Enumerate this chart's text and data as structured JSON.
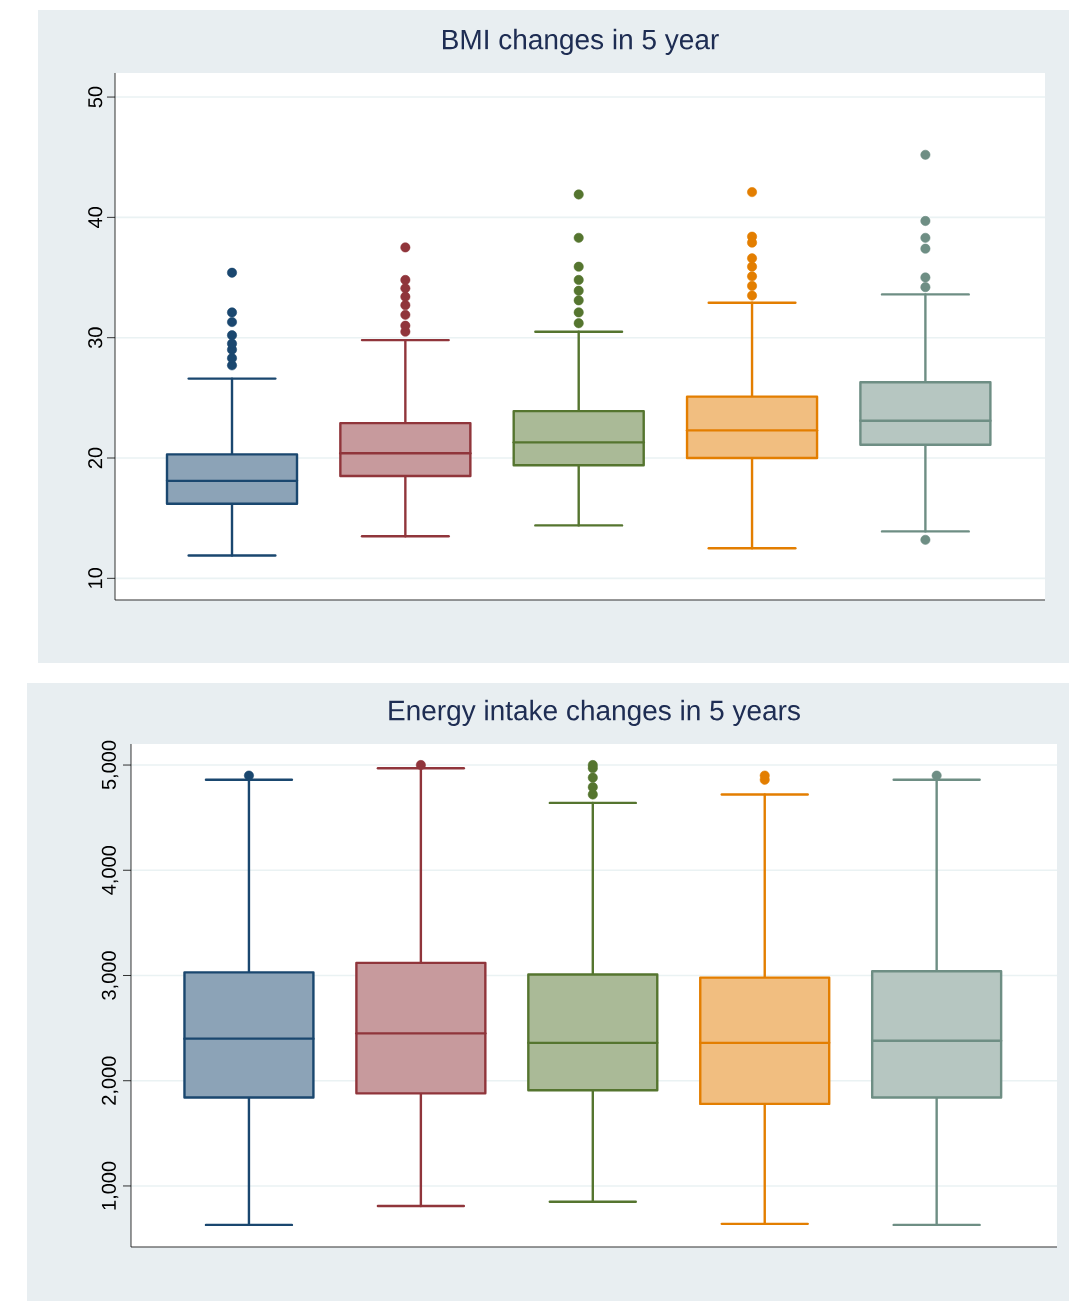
{
  "chart_data": [
    {
      "type": "box",
      "title": "BMI changes in 5 year",
      "categories": [
        null,
        null,
        null,
        null,
        null
      ],
      "colors": [
        "#1a476f",
        "#90353b",
        "#55752f",
        "#e37e00",
        "#6e8e84"
      ],
      "boxes": [
        {
          "low": 11.9,
          "q1": 16.2,
          "median": 18.1,
          "q3": 20.3,
          "high": 26.6,
          "outliers": [
            27.7,
            28.3,
            29.0,
            29.5,
            30.2,
            31.3,
            32.1,
            35.4
          ]
        },
        {
          "low": 13.5,
          "q1": 18.5,
          "median": 20.4,
          "q3": 22.9,
          "high": 29.8,
          "outliers": [
            30.5,
            31.0,
            31.9,
            32.7,
            33.4,
            34.1,
            34.8,
            37.5
          ]
        },
        {
          "low": 14.4,
          "q1": 19.4,
          "median": 21.3,
          "q3": 23.9,
          "high": 30.5,
          "outliers": [
            31.2,
            32.1,
            33.1,
            33.9,
            34.8,
            35.9,
            38.3,
            41.9
          ]
        },
        {
          "low": 12.5,
          "q1": 20.0,
          "median": 22.3,
          "q3": 25.1,
          "high": 32.9,
          "outliers": [
            33.5,
            34.3,
            35.1,
            35.9,
            36.6,
            37.9,
            38.4,
            42.1
          ]
        },
        {
          "low": 13.9,
          "q1": 21.1,
          "median": 23.1,
          "q3": 26.3,
          "high": 33.6,
          "outliers": [
            13.2,
            34.2,
            35.0,
            37.4,
            38.3,
            39.7,
            45.2
          ]
        }
      ],
      "ylim": [
        8.2,
        52
      ],
      "yticks": [
        10,
        20,
        30,
        40,
        50
      ],
      "grid": "y"
    },
    {
      "type": "box",
      "title": "Energy intake changes in 5 years",
      "categories": [
        null,
        null,
        null,
        null,
        null
      ],
      "colors": [
        "#1a476f",
        "#90353b",
        "#55752f",
        "#e37e00",
        "#6e8e84"
      ],
      "boxes": [
        {
          "low": 630,
          "q1": 1840,
          "median": 2400,
          "q3": 3030,
          "high": 4860,
          "outliers": [
            4900
          ]
        },
        {
          "low": 810,
          "q1": 1880,
          "median": 2450,
          "q3": 3120,
          "high": 4970,
          "outliers": [
            5000
          ]
        },
        {
          "low": 850,
          "q1": 1910,
          "median": 2360,
          "q3": 3010,
          "high": 4640,
          "outliers": [
            4720,
            4790,
            4880,
            4970,
            5000
          ]
        },
        {
          "low": 640,
          "q1": 1780,
          "median": 2360,
          "q3": 2980,
          "high": 4720,
          "outliers": [
            4860,
            4900
          ]
        },
        {
          "low": 630,
          "q1": 1840,
          "median": 2380,
          "q3": 3040,
          "high": 4860,
          "outliers": [
            4900
          ]
        }
      ],
      "ylim": [
        420,
        5200
      ],
      "yticks": [
        {
          "value": 1000,
          "label": "1,000"
        },
        {
          "value": 2000,
          "label": "2,000"
        },
        {
          "value": 3000,
          "label": "3,000"
        },
        {
          "value": 4000,
          "label": "4,000"
        },
        {
          "value": 5000,
          "label": "5,000"
        }
      ],
      "grid": "y"
    }
  ]
}
